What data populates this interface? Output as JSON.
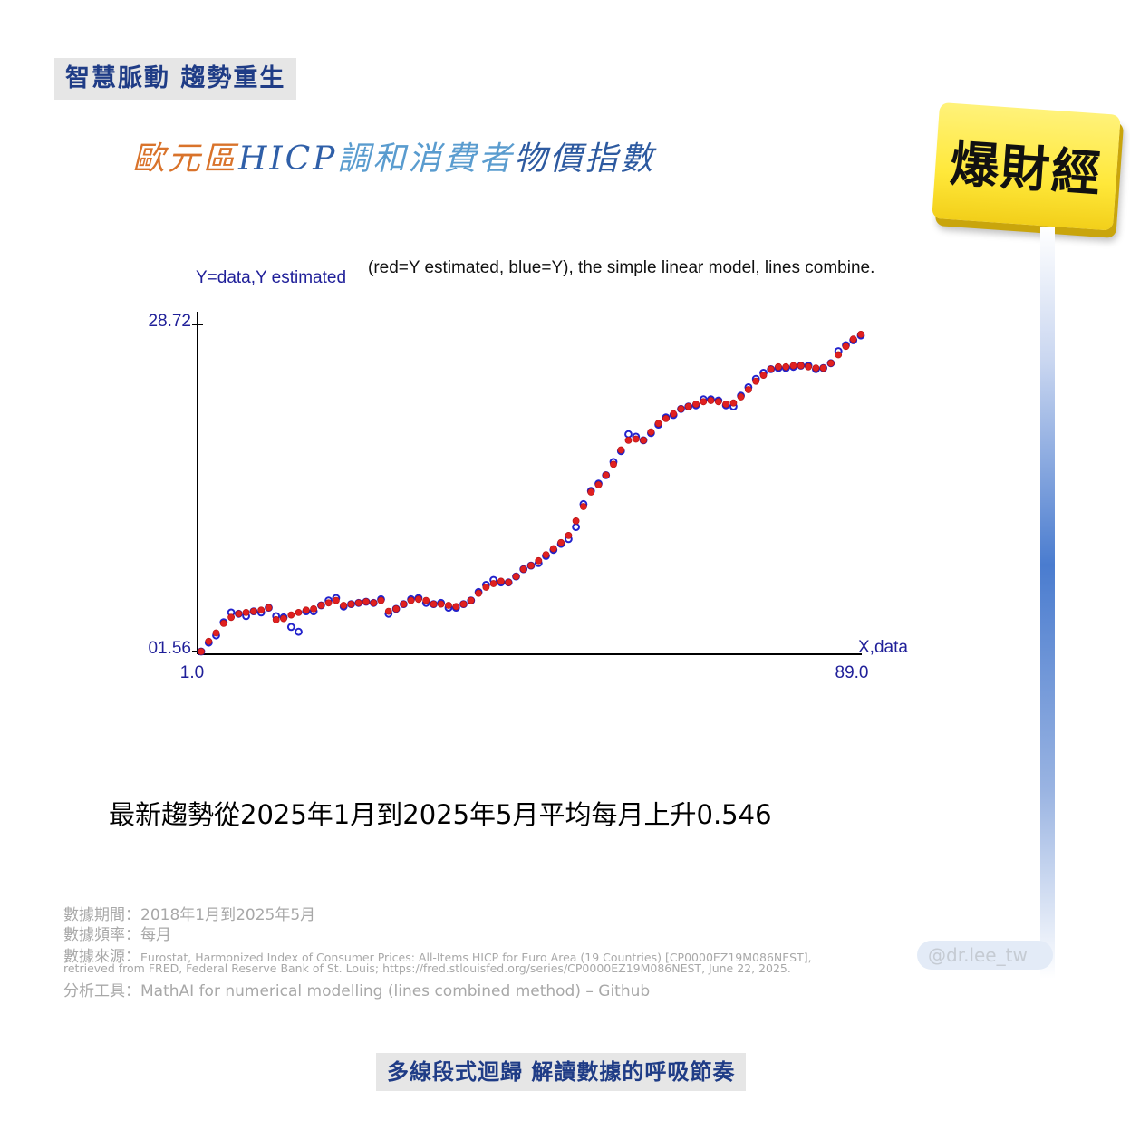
{
  "header": {
    "tag": "智慧脈動 趨勢重生",
    "title_part1": "歐元區",
    "title_part2": "HICP",
    "title_part3": "調和消費者",
    "title_part4": "物價指數"
  },
  "logo": {
    "text": "爆財經"
  },
  "chart_data": {
    "type": "scatter",
    "ylabel": "Y=data,Y estimated",
    "title": "(red=Y estimated, blue=Y), the simple linear model, lines combine.",
    "xlabel": "X,data",
    "x_tick_labels": [
      "1.0",
      "89.0"
    ],
    "y_tick_labels": [
      "01.56",
      "28.72"
    ],
    "xlim": [
      1,
      89
    ],
    "ylim": [
      1.56,
      28.72
    ],
    "grid": false,
    "series": [
      {
        "name": "Y",
        "color": "#2222cc",
        "values": [
          1.56,
          2.3,
          2.9,
          4.0,
          4.8,
          4.7,
          4.5,
          4.9,
          4.8,
          5.2,
          4.5,
          4.4,
          3.6,
          3.2,
          4.9,
          4.9,
          5.4,
          5.8,
          6.0,
          5.3,
          5.5,
          5.6,
          5.7,
          5.6,
          5.9,
          4.7,
          5.1,
          5.5,
          5.9,
          6.0,
          5.6,
          5.5,
          5.6,
          5.2,
          5.2,
          5.5,
          5.8,
          6.5,
          7.1,
          7.5,
          7.3,
          7.3,
          7.8,
          8.4,
          8.7,
          8.9,
          9.5,
          10.0,
          10.5,
          10.9,
          11.9,
          13.8,
          14.9,
          15.5,
          16.2,
          17.3,
          18.2,
          19.6,
          19.4,
          19.1,
          19.7,
          20.4,
          21.0,
          21.2,
          21.7,
          21.9,
          22.0,
          22.5,
          22.5,
          22.4,
          22.0,
          21.9,
          22.8,
          23.5,
          24.2,
          24.7,
          25.0,
          25.1,
          25.1,
          25.2,
          25.3,
          25.3,
          25.0,
          25.1,
          25.5,
          26.5,
          27.0,
          27.4,
          27.8
        ]
      },
      {
        "name": "Y estimated",
        "color": "#e02020",
        "values": [
          1.56,
          2.4,
          3.1,
          3.9,
          4.4,
          4.7,
          4.8,
          4.9,
          5.0,
          5.2,
          4.2,
          4.3,
          4.6,
          4.8,
          5.0,
          5.1,
          5.4,
          5.6,
          5.8,
          5.4,
          5.5,
          5.6,
          5.7,
          5.6,
          5.8,
          4.9,
          5.1,
          5.5,
          5.8,
          5.9,
          5.8,
          5.5,
          5.5,
          5.4,
          5.3,
          5.5,
          5.8,
          6.4,
          6.9,
          7.2,
          7.4,
          7.3,
          7.8,
          8.4,
          8.7,
          9.1,
          9.6,
          10.1,
          10.6,
          11.2,
          12.4,
          13.6,
          14.8,
          15.4,
          16.2,
          17.1,
          18.3,
          19.1,
          19.2,
          19.1,
          19.8,
          20.5,
          20.9,
          21.3,
          21.7,
          21.9,
          22.1,
          22.3,
          22.4,
          22.3,
          22.1,
          22.2,
          22.7,
          23.3,
          24.0,
          24.5,
          25.0,
          25.2,
          25.2,
          25.3,
          25.3,
          25.2,
          25.1,
          25.1,
          25.5,
          26.2,
          26.9,
          27.5,
          27.9
        ]
      }
    ]
  },
  "summary": {
    "trend": "最新趨勢從2025年1月到2025年5月平均每月上升0.546"
  },
  "meta": {
    "period": "數據期間：2018年1月到2025年5月",
    "frequency": "數據頻率：每月",
    "source_label": "數據來源：",
    "source_line1": "Eurostat, Harmonized Index of Consumer Prices: All-Items HICP for Euro Area (19 Countries) [CP0000EZ19M086NEST],",
    "source_line2": "retrieved from FRED, Federal Reserve Bank of St. Louis; https://fred.stlouisfed.org/series/CP0000EZ19M086NEST, June 22, 2025.",
    "tool": "分析工具：MathAI for numerical modelling (lines combined method) – Github"
  },
  "handle": "@dr.lee_tw",
  "footer": {
    "tag": "多線段式迴歸 解讀數據的呼吸節奏"
  }
}
